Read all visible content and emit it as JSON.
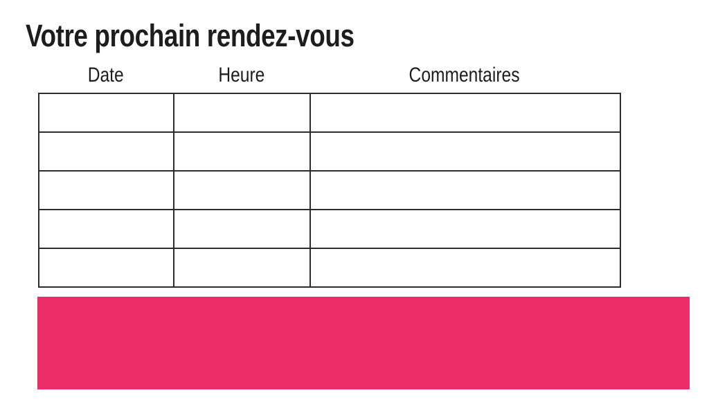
{
  "page": {
    "title": "Votre prochain rendez-vous"
  },
  "table": {
    "headers": [
      "Date",
      "Heure",
      "Commentaires"
    ],
    "rows": [
      [
        "",
        "",
        ""
      ],
      [
        "",
        "",
        ""
      ],
      [
        "",
        "",
        ""
      ],
      [
        "",
        "",
        ""
      ],
      [
        "",
        "",
        ""
      ]
    ]
  },
  "colors": {
    "accent_pink": "#ED2D68",
    "table_border": "#2b2b2b",
    "text": "#1d1d1d"
  }
}
